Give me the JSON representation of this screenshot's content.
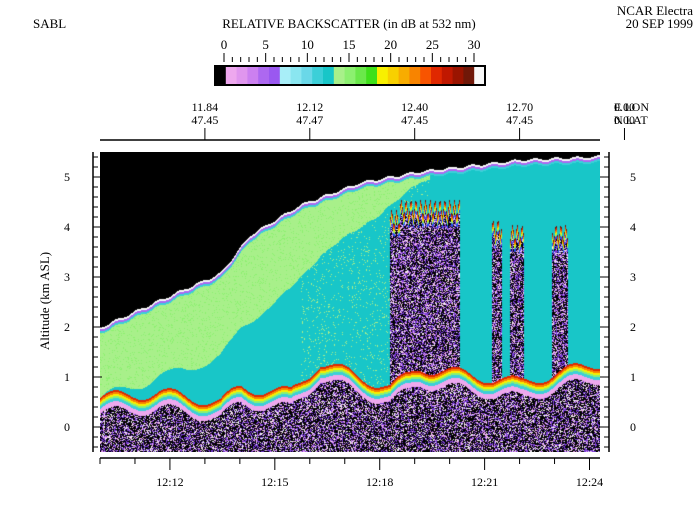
{
  "header": {
    "left_label": "SABL",
    "right_line1": "NCAR Electra",
    "right_line2": "20 SEP 1999"
  },
  "chart_data": {
    "type": "heatmap",
    "title": "RELATIVE BACKSCATTER (in dB at 532 nm)",
    "ylabel": "Altitude (km ASL)",
    "ylim": [
      -0.5,
      5.5
    ],
    "y_ticks": [
      "0",
      "1",
      "2",
      "3",
      "4",
      "5"
    ],
    "x_time_range": [
      "12:10:00",
      "12:24:18"
    ],
    "x_ticks": [
      "12:12",
      "12:15",
      "12:18",
      "12:21",
      "12:24"
    ],
    "top_axis": {
      "units_lon": "E LON",
      "units_lat": "N LAT",
      "ticks": [
        {
          "time": "12:13",
          "lon": "11.84",
          "lat": "47.45"
        },
        {
          "time": "12:16",
          "lon": "12.12",
          "lat": "47.47"
        },
        {
          "time": "12:19",
          "lon": "12.40",
          "lat": "47.45"
        },
        {
          "time": "12:22",
          "lon": "12.70",
          "lat": "47.45"
        },
        {
          "time": "12:25",
          "lon": "0.00",
          "lat": "0.00"
        }
      ]
    },
    "colorbar": {
      "range": [
        0,
        30
      ],
      "tick_labels": [
        "0",
        "5",
        "10",
        "15",
        "20",
        "25",
        "30"
      ],
      "colors": [
        "#000000",
        "#eea8ee",
        "#e096ee",
        "#cc80f0",
        "#ad68f0",
        "#9a58f0",
        "#a8eef8",
        "#8ae6f0",
        "#6ad8e8",
        "#3ccfd8",
        "#18c6c8",
        "#a8f08a",
        "#8cf070",
        "#6ae84a",
        "#3ee01a",
        "#f8f000",
        "#f8d000",
        "#f8ac00",
        "#f88400",
        "#f85400",
        "#e02800",
        "#c01800",
        "#9a1400",
        "#701808",
        "#f8f8f8"
      ]
    },
    "features": {
      "aerosol_top_km": [
        [
          0,
          2.0
        ],
        [
          60,
          2.55
        ],
        [
          120,
          3.08
        ],
        [
          150,
          3.85
        ],
        [
          200,
          4.45
        ],
        [
          260,
          4.9
        ],
        [
          320,
          5.12
        ],
        [
          420,
          5.35
        ],
        [
          500,
          5.42
        ]
      ],
      "surface_km": [
        [
          0,
          0.6
        ],
        [
          60,
          0.7
        ],
        [
          120,
          0.5
        ],
        [
          140,
          0.8
        ],
        [
          190,
          0.7
        ],
        [
          220,
          1.3
        ],
        [
          290,
          0.8
        ],
        [
          320,
          1.2
        ],
        [
          420,
          0.9
        ],
        [
          500,
          1.3
        ]
      ],
      "cloud_columns": [
        {
          "x0": 290,
          "x1": 300,
          "top_km": 4.2
        },
        {
          "x0": 300,
          "x1": 360,
          "top_km": 4.4
        },
        {
          "x0": 392,
          "x1": 402,
          "top_km": 4.0
        },
        {
          "x0": 410,
          "x1": 424,
          "top_km": 3.9
        },
        {
          "x0": 452,
          "x1": 468,
          "top_km": 3.9
        }
      ]
    }
  }
}
